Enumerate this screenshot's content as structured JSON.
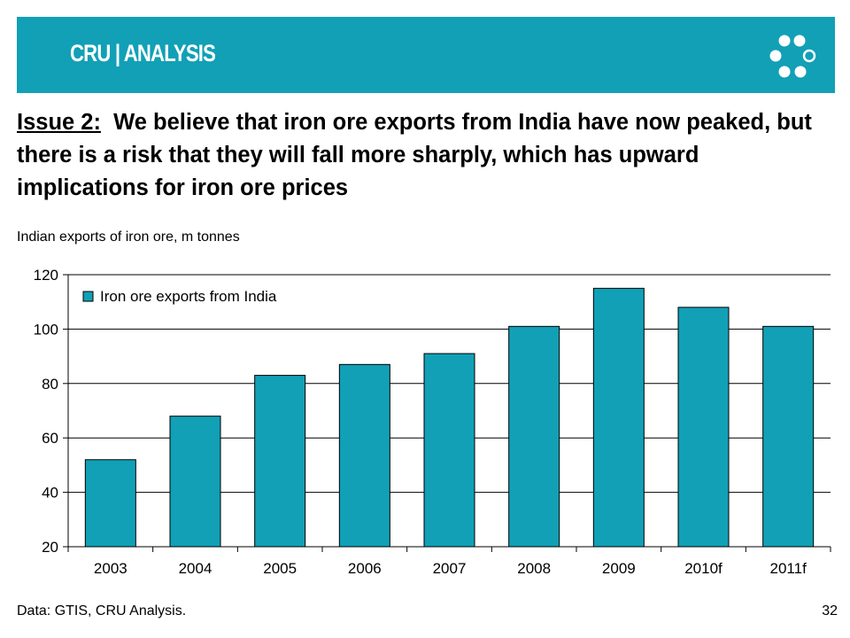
{
  "header": {
    "logo_text": "CRU | ANALYSIS",
    "banner_color": "#11a0b6",
    "mark_icon": "ring-of-dots-icon"
  },
  "headline": {
    "issue_label": "Issue 2:",
    "text": "We believe that iron ore exports from India have now peaked, but there is a risk that they will fall more sharply, which has upward implications for iron ore prices"
  },
  "subtitle": "Indian exports of iron ore, m tonnes",
  "chart_data": {
    "type": "bar",
    "categories": [
      "2003",
      "2004",
      "2005",
      "2006",
      "2007",
      "2008",
      "2009",
      "2010f",
      "2011f"
    ],
    "series": [
      {
        "name": "Iron ore exports from India",
        "color": "#11a0b6",
        "values": [
          52,
          68,
          83,
          87,
          91,
          101,
          115,
          108,
          101
        ]
      }
    ],
    "ylim": [
      20,
      120
    ],
    "yticks": [
      20,
      40,
      60,
      80,
      100,
      120
    ],
    "grid": true,
    "legend_position": "top-left"
  },
  "footer": {
    "source": "Data: GTIS, CRU Analysis.",
    "page_number": "32"
  }
}
